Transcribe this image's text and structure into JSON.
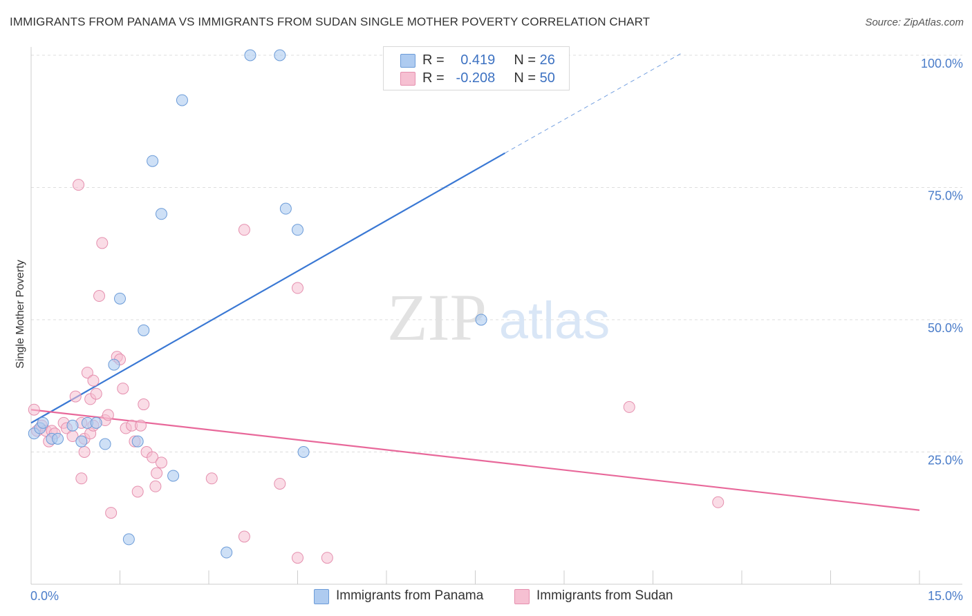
{
  "header": {
    "title": "IMMIGRANTS FROM PANAMA VS IMMIGRANTS FROM SUDAN SINGLE MOTHER POVERTY CORRELATION CHART",
    "source": "Source: ZipAtlas.com"
  },
  "watermark": {
    "zip": "ZIP",
    "atlas": "atlas"
  },
  "legend": {
    "rows": [
      {
        "r_label": "R =",
        "r_value": "0.419",
        "n_label": "N =",
        "n_value": "26"
      },
      {
        "r_label": "R =",
        "r_value": "-0.208",
        "n_label": "N =",
        "n_value": "50"
      }
    ]
  },
  "bottom_legend": {
    "panama": "Immigrants from Panama",
    "sudan": "Immigrants from Sudan"
  },
  "colors": {
    "panama_fill": "#aecbf0",
    "panama_stroke": "#6b9bd8",
    "panama_line": "#3a78d4",
    "sudan_fill": "#f6c0d2",
    "sudan_stroke": "#e58fae",
    "sudan_line": "#e8689a",
    "grid": "#dddddd",
    "axis_text": "#4a7cc9"
  },
  "chart_data": {
    "type": "scatter",
    "title": "IMMIGRANTS FROM PANAMA VS IMMIGRANTS FROM SUDAN SINGLE MOTHER POVERTY CORRELATION CHART",
    "xlabel": "",
    "ylabel": "Single Mother Poverty",
    "xlim": [
      0,
      15
    ],
    "ylim": [
      0,
      100
    ],
    "x_tick_labels": [
      "0.0%",
      "15.0%"
    ],
    "y_ticks": [
      {
        "value": 25,
        "label": "25.0%"
      },
      {
        "value": 50,
        "label": "50.0%"
      },
      {
        "value": 75,
        "label": "75.0%"
      },
      {
        "value": 100,
        "label": "100.0%"
      }
    ],
    "series": [
      {
        "name": "Immigrants from Panama",
        "points": [
          [
            0.05,
            28.5
          ],
          [
            0.15,
            29.5
          ],
          [
            0.2,
            30.5
          ],
          [
            0.35,
            27.5
          ],
          [
            0.45,
            27.5
          ],
          [
            0.7,
            30
          ],
          [
            0.85,
            27
          ],
          [
            0.95,
            30.5
          ],
          [
            1.1,
            30.5
          ],
          [
            1.25,
            26.5
          ],
          [
            1.4,
            41.5
          ],
          [
            1.5,
            54
          ],
          [
            1.65,
            8.5
          ],
          [
            1.8,
            27
          ],
          [
            1.9,
            48
          ],
          [
            2.05,
            80
          ],
          [
            2.2,
            70
          ],
          [
            2.4,
            20.5
          ],
          [
            2.55,
            91.5
          ],
          [
            3.3,
            6
          ],
          [
            3.7,
            100
          ],
          [
            4.2,
            100
          ],
          [
            4.3,
            71
          ],
          [
            4.5,
            67
          ],
          [
            4.6,
            25
          ],
          [
            7.6,
            50
          ]
        ],
        "trend": {
          "x": [
            0.0,
            8.0
          ],
          "y": [
            30.5,
            81.5
          ],
          "dash_x": [
            8.0,
            11.0
          ],
          "dash_y": [
            81.5,
            100.5
          ]
        }
      },
      {
        "name": "Immigrants from Sudan",
        "points": [
          [
            0.05,
            33
          ],
          [
            0.1,
            29
          ],
          [
            0.18,
            30
          ],
          [
            0.25,
            29
          ],
          [
            0.3,
            27
          ],
          [
            0.35,
            29
          ],
          [
            0.4,
            28.5
          ],
          [
            0.55,
            30.5
          ],
          [
            0.6,
            29.5
          ],
          [
            0.7,
            28
          ],
          [
            0.75,
            35.5
          ],
          [
            0.85,
            30.5
          ],
          [
            0.9,
            27.5
          ],
          [
            1.0,
            28.5
          ],
          [
            1.05,
            30
          ],
          [
            0.8,
            75.5
          ],
          [
            0.85,
            20
          ],
          [
            0.9,
            25
          ],
          [
            0.95,
            40
          ],
          [
            1.0,
            35
          ],
          [
            1.05,
            38.5
          ],
          [
            1.1,
            36
          ],
          [
            1.15,
            54.5
          ],
          [
            1.2,
            64.5
          ],
          [
            1.25,
            31
          ],
          [
            1.3,
            32
          ],
          [
            1.35,
            13.5
          ],
          [
            1.45,
            43
          ],
          [
            1.5,
            42.5
          ],
          [
            1.55,
            37
          ],
          [
            1.6,
            29.5
          ],
          [
            1.7,
            30
          ],
          [
            1.75,
            27
          ],
          [
            1.8,
            17.5
          ],
          [
            1.85,
            30
          ],
          [
            1.9,
            34
          ],
          [
            1.95,
            25
          ],
          [
            2.05,
            24
          ],
          [
            2.1,
            18.5
          ],
          [
            2.12,
            21
          ],
          [
            2.2,
            23
          ],
          [
            3.05,
            20
          ],
          [
            3.6,
            9
          ],
          [
            3.6,
            67
          ],
          [
            4.2,
            19
          ],
          [
            4.5,
            56
          ],
          [
            4.5,
            5
          ],
          [
            5.0,
            5
          ],
          [
            10.1,
            33.5
          ],
          [
            11.6,
            15.5
          ]
        ],
        "trend": {
          "x": [
            0.0,
            15.0
          ],
          "y": [
            33.0,
            14.0
          ]
        }
      }
    ]
  }
}
